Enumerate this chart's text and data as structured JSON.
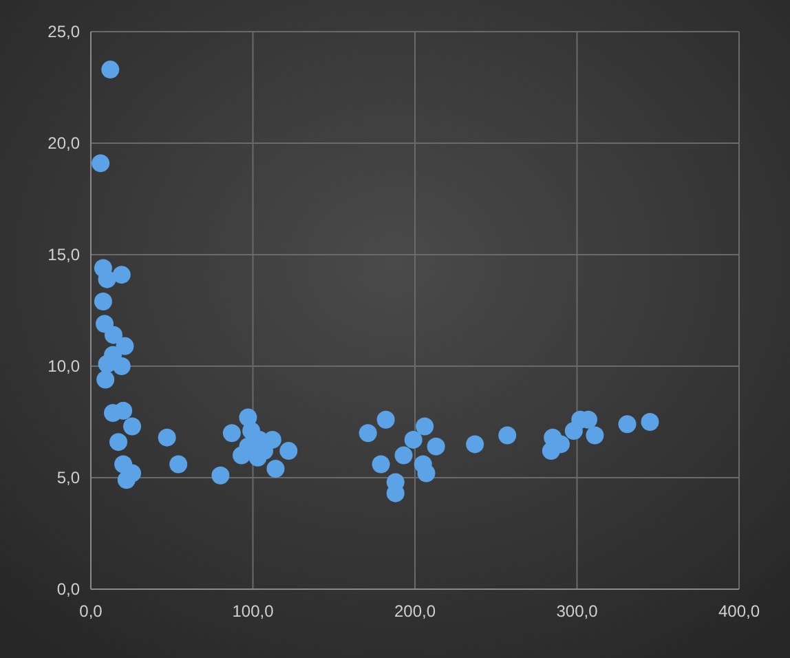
{
  "chart_data": {
    "type": "scatter",
    "marker": "circle",
    "grid": true,
    "xlim": [
      0,
      400
    ],
    "ylim": [
      0,
      25
    ],
    "xticks": [
      {
        "value": 0,
        "label": "0,0"
      },
      {
        "value": 100,
        "label": "100,0"
      },
      {
        "value": 200,
        "label": "200,0"
      },
      {
        "value": 300,
        "label": "300,0"
      },
      {
        "value": 400,
        "label": "400,0"
      }
    ],
    "yticks": [
      {
        "value": 0,
        "label": "0,0"
      },
      {
        "value": 5,
        "label": "5,0"
      },
      {
        "value": 10,
        "label": "10,0"
      },
      {
        "value": 15,
        "label": "15,0"
      },
      {
        "value": 20,
        "label": "20,0"
      },
      {
        "value": 25,
        "label": "25,0"
      }
    ],
    "series": [
      {
        "color": "#5ba3e6",
        "x": [
          12,
          6,
          7.6,
          10,
          19,
          7.6,
          8.5,
          14,
          21,
          13.6,
          10,
          19,
          9,
          13.6,
          20,
          25.5,
          17,
          20,
          25.5,
          22,
          47,
          54,
          80,
          87,
          97,
          99,
          93,
          104,
          112,
          122,
          114,
          103,
          97,
          107,
          171,
          182,
          206,
          179,
          188,
          188,
          193,
          205,
          207,
          213,
          199,
          237,
          257,
          284,
          285,
          290,
          298,
          302,
          307,
          311,
          331,
          345
        ],
        "values": [
          23.3,
          19.1,
          14.4,
          13.9,
          14.1,
          12.9,
          11.9,
          11.4,
          10.9,
          10.5,
          10.1,
          10,
          9.4,
          7.9,
          8,
          7.3,
          6.6,
          5.6,
          5.2,
          4.9,
          6.8,
          5.6,
          5.1,
          7,
          7.7,
          7.1,
          6,
          6.7,
          6.7,
          6.2,
          5.4,
          5.9,
          6.4,
          6.2,
          7,
          7.6,
          7.3,
          5.6,
          4.8,
          4.3,
          6,
          5.6,
          5.2,
          6.4,
          6.7,
          6.5,
          6.9,
          6.2,
          6.8,
          6.5,
          7.1,
          7.6,
          7.6,
          6.9,
          7.4,
          7.5
        ]
      }
    ]
  }
}
